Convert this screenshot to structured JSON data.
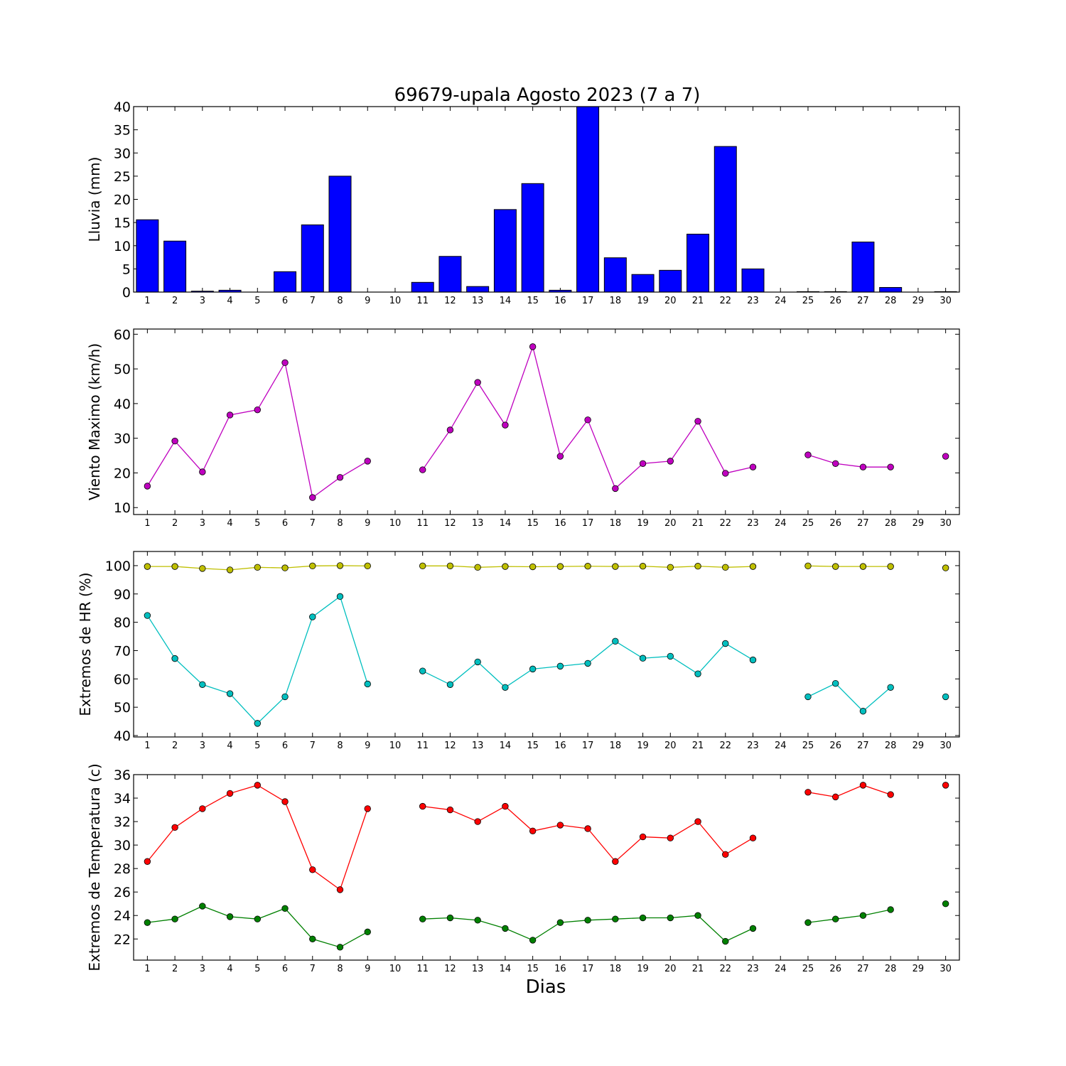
{
  "title": "69679-upala Agosto 2023  (7 a 7)",
  "xlabel": "Dias",
  "chart_data": [
    {
      "type": "bar",
      "ylabel": "Lluvia (mm)",
      "categories": [
        "1",
        "2",
        "3",
        "4",
        "5",
        "6",
        "7",
        "8",
        "9",
        "10",
        "11",
        "12",
        "13",
        "14",
        "15",
        "16",
        "17",
        "18",
        "19",
        "20",
        "21",
        "22",
        "23",
        "24",
        "25",
        "26",
        "27",
        "28",
        "29",
        "30"
      ],
      "values": [
        15.6,
        11.0,
        0.2,
        0.4,
        0,
        4.4,
        14.5,
        25.0,
        0,
        0,
        2.1,
        7.7,
        1.2,
        17.8,
        23.4,
        0.4,
        40.0,
        7.4,
        3.8,
        4.7,
        12.5,
        31.4,
        5.0,
        0,
        0.1,
        0.1,
        10.8,
        1.0,
        0,
        0.1
      ],
      "ylim": [
        0,
        40
      ],
      "yticks": [
        0,
        5,
        10,
        15,
        20,
        25,
        30,
        35,
        40
      ],
      "colors": {
        "bar": "#0000ff"
      }
    },
    {
      "type": "line",
      "ylabel": "Viento Maximo (km/h)",
      "x": [
        1,
        2,
        3,
        4,
        5,
        6,
        7,
        8,
        9,
        10,
        11,
        12,
        13,
        14,
        15,
        16,
        17,
        18,
        19,
        20,
        21,
        22,
        23,
        24,
        25,
        26,
        27,
        28,
        29,
        30
      ],
      "series": [
        {
          "values": [
            16.2,
            29.2,
            20.3,
            36.7,
            38.2,
            51.8,
            12.9,
            18.7,
            23.4,
            null,
            20.9,
            32.4,
            46.1,
            33.8,
            56.4,
            24.8,
            35.3,
            15.5,
            22.7,
            23.4,
            34.9,
            19.9,
            21.7,
            null,
            25.2,
            22.7,
            21.7,
            21.7,
            null,
            24.8
          ],
          "color": "#bf00bf"
        }
      ],
      "ylim": [
        8,
        61.5
      ],
      "yticks": [
        10,
        20,
        30,
        40,
        50,
        60
      ]
    },
    {
      "type": "line",
      "ylabel": "Extremos de HR (%)",
      "x": [
        1,
        2,
        3,
        4,
        5,
        6,
        7,
        8,
        9,
        10,
        11,
        12,
        13,
        14,
        15,
        16,
        17,
        18,
        19,
        20,
        21,
        22,
        23,
        24,
        25,
        26,
        27,
        28,
        29,
        30
      ],
      "series": [
        {
          "values": [
            99.7,
            99.7,
            99.0,
            98.5,
            99.4,
            99.2,
            99.9,
            100.0,
            99.9,
            null,
            99.9,
            99.9,
            99.4,
            99.7,
            99.6,
            99.7,
            99.8,
            99.7,
            99.8,
            99.4,
            99.8,
            99.4,
            99.7,
            null,
            99.9,
            99.7,
            99.7,
            99.7,
            null,
            99.2
          ],
          "color": "#bfbf00"
        },
        {
          "values": [
            82.4,
            67.2,
            58.0,
            54.8,
            44.3,
            53.7,
            81.9,
            89.1,
            58.2,
            null,
            62.8,
            58.0,
            66.0,
            57.0,
            63.5,
            64.5,
            65.5,
            73.3,
            67.3,
            68.0,
            61.8,
            72.5,
            66.7,
            null,
            53.7,
            58.4,
            48.6,
            57.0,
            null,
            53.7
          ],
          "color": "#00bfbf"
        }
      ],
      "ylim": [
        39.5,
        105
      ],
      "yticks": [
        40,
        50,
        60,
        70,
        80,
        90,
        100
      ]
    },
    {
      "type": "line",
      "ylabel": "Extremos de Temperatura (c)",
      "x": [
        1,
        2,
        3,
        4,
        5,
        6,
        7,
        8,
        9,
        10,
        11,
        12,
        13,
        14,
        15,
        16,
        17,
        18,
        19,
        20,
        21,
        22,
        23,
        24,
        25,
        26,
        27,
        28,
        29,
        30
      ],
      "series": [
        {
          "values": [
            28.6,
            31.5,
            33.1,
            34.4,
            35.1,
            33.7,
            27.9,
            26.2,
            33.1,
            null,
            33.3,
            33.0,
            32.0,
            33.3,
            31.2,
            31.7,
            31.4,
            28.6,
            30.7,
            30.6,
            32.0,
            29.2,
            30.6,
            null,
            34.5,
            34.1,
            35.1,
            34.3,
            null,
            35.1
          ],
          "color": "#ff0000"
        },
        {
          "values": [
            23.4,
            23.7,
            24.8,
            23.9,
            23.7,
            24.6,
            22.0,
            21.3,
            22.6,
            null,
            23.7,
            23.8,
            23.6,
            22.9,
            21.9,
            23.4,
            23.6,
            23.7,
            23.8,
            23.8,
            24.0,
            21.8,
            22.9,
            null,
            23.4,
            23.7,
            24.0,
            24.5,
            null,
            25.0
          ],
          "color": "#008000"
        }
      ],
      "ylim": [
        20.2,
        36
      ],
      "yticks": [
        22,
        24,
        26,
        28,
        30,
        32,
        34,
        36
      ]
    }
  ]
}
